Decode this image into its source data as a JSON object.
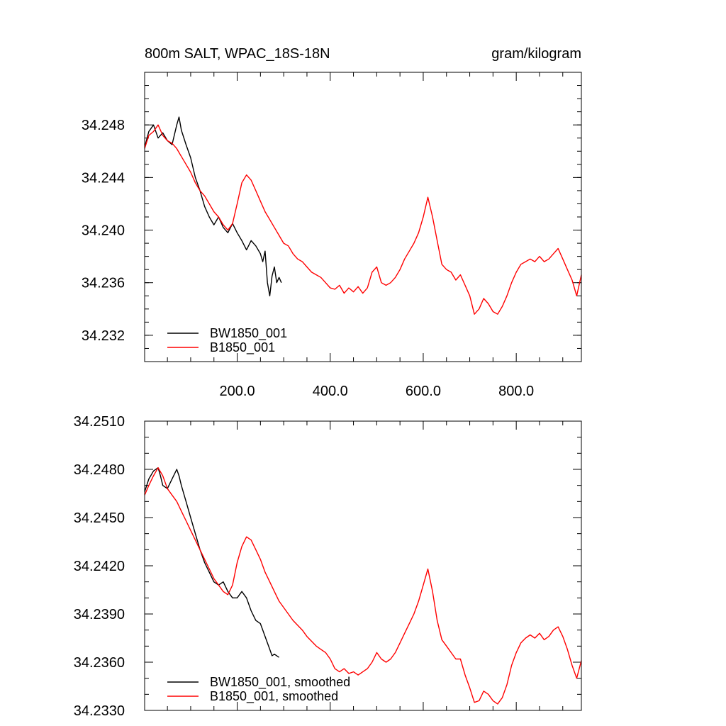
{
  "chart_data": [
    {
      "type": "line",
      "title": "800m SALT, WPAC_18S-18N",
      "units": "gram/kilogram",
      "xlim": [
        1,
        940
      ],
      "ylim": [
        34.23,
        34.252
      ],
      "x_ticks": [
        200,
        400,
        600,
        800
      ],
      "x_tick_labels": [
        "200.0",
        "400.0",
        "600.0",
        "800.0"
      ],
      "y_ticks": [
        34.232,
        34.236,
        34.24,
        34.244,
        34.248
      ],
      "y_tick_labels": [
        "34.232",
        "34.236",
        "34.240",
        "34.244",
        "34.248"
      ],
      "grid": false,
      "legend_position": "bottom-left",
      "series": [
        {
          "name": "BW1850_001",
          "color": "#000000",
          "x": [
            1,
            10,
            20,
            30,
            40,
            50,
            60,
            70,
            75,
            80,
            90,
            100,
            110,
            120,
            130,
            140,
            150,
            160,
            170,
            180,
            190,
            200,
            210,
            220,
            230,
            240,
            250,
            255,
            260,
            265,
            270,
            275,
            280,
            285,
            290,
            295
          ],
          "y": [
            34.2463,
            34.2475,
            34.248,
            34.247,
            34.2474,
            34.2468,
            34.2465,
            34.248,
            34.2486,
            34.2476,
            34.2465,
            34.2455,
            34.244,
            34.243,
            34.2418,
            34.241,
            34.2404,
            34.241,
            34.2402,
            34.2398,
            34.2405,
            34.2398,
            34.2392,
            34.2385,
            34.2392,
            34.2388,
            34.2382,
            34.2376,
            34.2384,
            34.236,
            34.235,
            34.2365,
            34.2372,
            34.236,
            34.2364,
            34.236
          ]
        },
        {
          "name": "B1850_001",
          "color": "#ff0000",
          "x": [
            1,
            10,
            20,
            30,
            40,
            50,
            60,
            70,
            80,
            90,
            100,
            110,
            120,
            130,
            140,
            150,
            160,
            170,
            180,
            190,
            200,
            210,
            220,
            230,
            240,
            250,
            260,
            270,
            280,
            290,
            300,
            310,
            320,
            330,
            340,
            350,
            360,
            370,
            380,
            390,
            400,
            410,
            420,
            430,
            440,
            450,
            460,
            470,
            480,
            490,
            500,
            510,
            520,
            530,
            540,
            550,
            560,
            570,
            580,
            590,
            600,
            610,
            620,
            630,
            640,
            650,
            660,
            670,
            680,
            690,
            700,
            710,
            720,
            730,
            740,
            750,
            760,
            770,
            780,
            790,
            800,
            810,
            820,
            830,
            840,
            850,
            860,
            870,
            880,
            890,
            900,
            910,
            920,
            930,
            940
          ],
          "y": [
            34.2462,
            34.2472,
            34.2475,
            34.248,
            34.2472,
            34.2468,
            34.2466,
            34.2462,
            34.2456,
            34.245,
            34.2444,
            34.2436,
            34.243,
            34.2426,
            34.242,
            34.2414,
            34.241,
            34.2404,
            34.24,
            34.2405,
            34.242,
            34.2436,
            34.2442,
            34.2438,
            34.243,
            34.2422,
            34.2414,
            34.2408,
            34.2402,
            34.2396,
            34.239,
            34.2388,
            34.2382,
            34.2378,
            34.2376,
            34.2372,
            34.2368,
            34.2366,
            34.2364,
            34.236,
            34.2356,
            34.2355,
            34.2358,
            34.2352,
            34.2356,
            34.2353,
            34.2357,
            34.2352,
            34.2356,
            34.2368,
            34.2372,
            34.236,
            34.2358,
            34.236,
            34.2364,
            34.237,
            34.2378,
            34.2384,
            34.239,
            34.2398,
            34.241,
            34.2425,
            34.241,
            34.2392,
            34.2374,
            34.237,
            34.2368,
            34.2362,
            34.2366,
            34.2358,
            34.235,
            34.2336,
            34.234,
            34.2348,
            34.2344,
            34.2338,
            34.2336,
            34.2342,
            34.235,
            34.236,
            34.2368,
            34.2374,
            34.2376,
            34.2378,
            34.2376,
            34.238,
            34.2376,
            34.2378,
            34.2382,
            34.2386,
            34.2378,
            34.237,
            34.2362,
            34.235,
            34.2366
          ]
        }
      ]
    },
    {
      "type": "line",
      "title": "",
      "xlim": [
        1,
        940
      ],
      "ylim": [
        34.233,
        34.251
      ],
      "y_ticks": [
        34.233,
        34.236,
        34.239,
        34.242,
        34.245,
        34.248,
        34.251
      ],
      "y_tick_labels": [
        "34.2330",
        "34.2360",
        "34.2390",
        "34.2420",
        "34.2450",
        "34.2480",
        "34.2510"
      ],
      "grid": false,
      "legend_position": "bottom-left",
      "series": [
        {
          "name": "BW1850_001, smoothed",
          "color": "#000000",
          "x": [
            1,
            10,
            20,
            30,
            35,
            40,
            50,
            60,
            70,
            75,
            80,
            90,
            100,
            110,
            120,
            130,
            140,
            150,
            160,
            170,
            180,
            190,
            200,
            210,
            220,
            230,
            240,
            250,
            260,
            270,
            275,
            280,
            290
          ],
          "y": [
            34.2466,
            34.2474,
            34.2479,
            34.2481,
            34.2476,
            34.247,
            34.2468,
            34.2474,
            34.248,
            34.2476,
            34.247,
            34.246,
            34.245,
            34.244,
            34.243,
            34.2422,
            34.2416,
            34.241,
            34.2408,
            34.241,
            34.2404,
            34.24,
            34.24,
            34.2404,
            34.24,
            34.2392,
            34.2386,
            34.2384,
            34.2376,
            34.2368,
            34.2364,
            34.2365,
            34.2363
          ]
        },
        {
          "name": "B1850_001, smoothed",
          "color": "#ff0000",
          "x": [
            1,
            10,
            20,
            30,
            40,
            50,
            60,
            70,
            80,
            90,
            100,
            110,
            120,
            130,
            140,
            150,
            160,
            170,
            180,
            190,
            200,
            210,
            220,
            230,
            240,
            250,
            260,
            270,
            280,
            290,
            300,
            310,
            320,
            330,
            340,
            350,
            360,
            370,
            380,
            390,
            400,
            410,
            420,
            430,
            440,
            450,
            460,
            470,
            480,
            490,
            500,
            510,
            520,
            530,
            540,
            550,
            560,
            570,
            580,
            590,
            600,
            610,
            620,
            630,
            640,
            650,
            660,
            670,
            680,
            690,
            700,
            710,
            720,
            730,
            740,
            750,
            760,
            770,
            780,
            790,
            800,
            810,
            820,
            830,
            840,
            850,
            860,
            870,
            880,
            890,
            900,
            910,
            920,
            930,
            940
          ],
          "y": [
            34.2464,
            34.247,
            34.2476,
            34.2481,
            34.2476,
            34.2468,
            34.2464,
            34.246,
            34.2454,
            34.2448,
            34.2442,
            34.2436,
            34.243,
            34.2424,
            34.2418,
            34.2412,
            34.2408,
            34.2404,
            34.2402,
            34.2408,
            34.2422,
            34.2432,
            34.2438,
            34.2436,
            34.243,
            34.2424,
            34.2416,
            34.241,
            34.2404,
            34.2398,
            34.2394,
            34.239,
            34.2386,
            34.2383,
            34.238,
            34.2376,
            34.2373,
            34.237,
            34.2368,
            34.2366,
            34.2362,
            34.2356,
            34.2354,
            34.2356,
            34.2353,
            34.2354,
            34.2352,
            34.2354,
            34.2356,
            34.236,
            34.2366,
            34.2362,
            34.236,
            34.2362,
            34.2366,
            34.2372,
            34.2378,
            34.2384,
            34.239,
            34.2398,
            34.2408,
            34.2418,
            34.2404,
            34.2386,
            34.2374,
            34.237,
            34.2366,
            34.2362,
            34.2362,
            34.2352,
            34.2344,
            34.2335,
            34.2336,
            34.2342,
            34.234,
            34.2336,
            34.2334,
            34.2338,
            34.2346,
            34.2358,
            34.2366,
            34.2372,
            34.2375,
            34.2377,
            34.2375,
            34.2378,
            34.2374,
            34.2376,
            34.238,
            34.2382,
            34.2376,
            34.2368,
            34.2358,
            34.235,
            34.2361
          ]
        }
      ]
    }
  ]
}
